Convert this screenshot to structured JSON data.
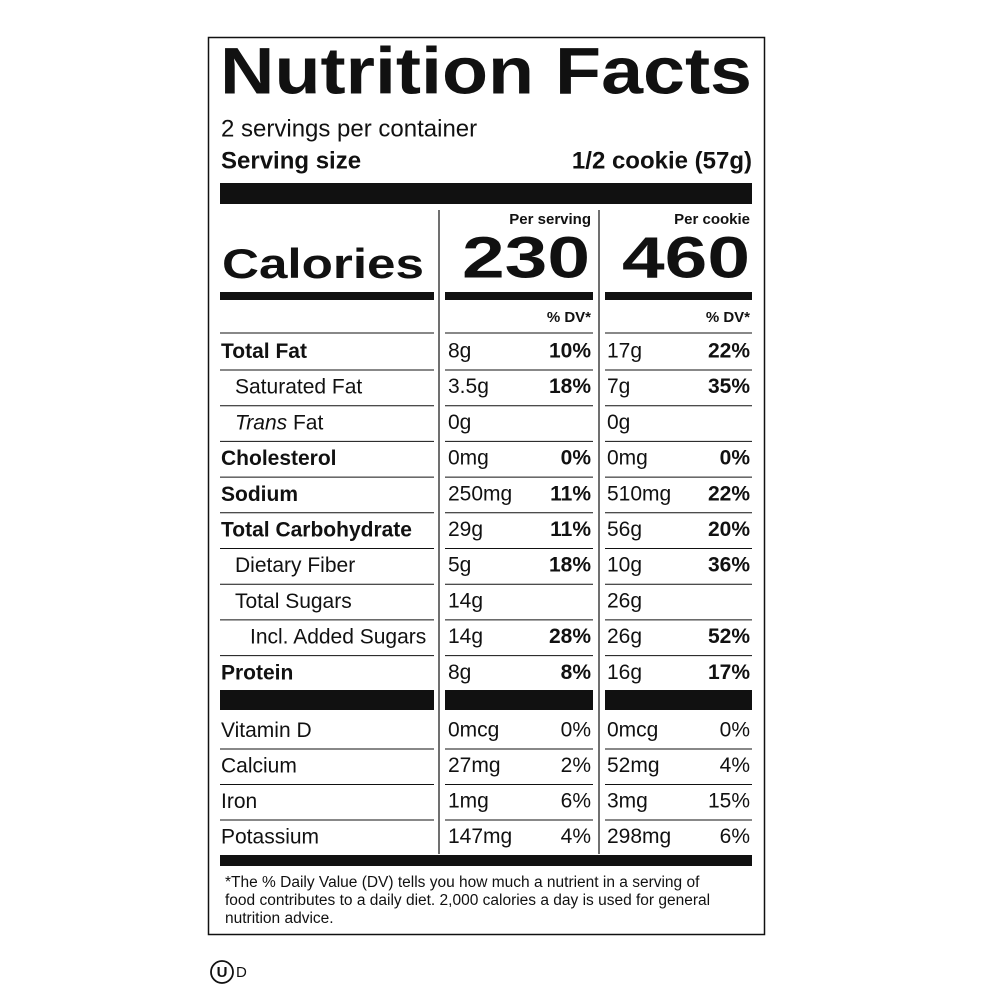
{
  "title": "Nutrition Facts",
  "servings": "2 servings per container",
  "serving_size_label": "Serving size",
  "serving_size": "1/2 cookie (57g)",
  "columns": [
    "Per serving",
    "Per cookie"
  ],
  "calories_label": "Calories",
  "calories": [
    "230",
    "460"
  ],
  "dv_headers": [
    "% DV*",
    "% DV*"
  ],
  "nutrients": [
    {
      "name": "Total Fat",
      "bold": true,
      "indent": 0,
      "per_serving": {
        "amount": "8g",
        "dv": "10%"
      },
      "per_cookie": {
        "amount": "17g",
        "dv": "22%"
      }
    },
    {
      "name": "Saturated Fat",
      "bold": false,
      "indent": 1,
      "per_serving": {
        "amount": "3.5g",
        "dv": "18%"
      },
      "per_cookie": {
        "amount": "7g",
        "dv": "35%"
      }
    },
    {
      "name_italic": "Trans",
      "name": " Fat",
      "bold": false,
      "indent": 1,
      "per_serving": {
        "amount": "0g"
      },
      "per_cookie": {
        "amount": "0g"
      }
    },
    {
      "name": "Cholesterol",
      "bold": true,
      "indent": 0,
      "per_serving": {
        "amount": "0mg",
        "dv": "0%"
      },
      "per_cookie": {
        "amount": "0mg",
        "dv": "0%"
      }
    },
    {
      "name": "Sodium",
      "bold": true,
      "indent": 0,
      "per_serving": {
        "amount": "250mg",
        "dv": "11%"
      },
      "per_cookie": {
        "amount": "510mg",
        "dv": "22%"
      }
    },
    {
      "name": "Total Carbohydrate",
      "bold": true,
      "indent": 0,
      "per_serving": {
        "amount": "29g",
        "dv": "11%"
      },
      "per_cookie": {
        "amount": "56g",
        "dv": "20%"
      }
    },
    {
      "name": "Dietary Fiber",
      "bold": false,
      "indent": 1,
      "per_serving": {
        "amount": "5g",
        "dv": "18%"
      },
      "per_cookie": {
        "amount": "10g",
        "dv": "36%"
      }
    },
    {
      "name": "Total Sugars",
      "bold": false,
      "indent": 1,
      "per_serving": {
        "amount": "14g"
      },
      "per_cookie": {
        "amount": "26g"
      }
    },
    {
      "name": "Incl. Added Sugars",
      "bold": false,
      "indent": 2,
      "per_serving": {
        "amount": "14g",
        "dv": "28%"
      },
      "per_cookie": {
        "amount": "26g",
        "dv": "52%"
      }
    },
    {
      "name": "Protein",
      "bold": true,
      "indent": 0,
      "per_serving": {
        "amount": "8g",
        "dv": "8%"
      },
      "per_cookie": {
        "amount": "16g",
        "dv": "17%"
      }
    }
  ],
  "vitamins": [
    {
      "name": "Vitamin D",
      "per_serving": {
        "amount": "0mcg",
        "dv": "0%"
      },
      "per_cookie": {
        "amount": "0mcg",
        "dv": "0%"
      }
    },
    {
      "name": "Calcium",
      "per_serving": {
        "amount": "27mg",
        "dv": "2%"
      },
      "per_cookie": {
        "amount": "52mg",
        "dv": "4%"
      }
    },
    {
      "name": "Iron",
      "per_serving": {
        "amount": "1mg",
        "dv": "6%"
      },
      "per_cookie": {
        "amount": "3mg",
        "dv": "15%"
      }
    },
    {
      "name": "Potassium",
      "per_serving": {
        "amount": "147mg",
        "dv": "4%"
      },
      "per_cookie": {
        "amount": "298mg",
        "dv": "6%"
      }
    }
  ],
  "footnote": [
    "*The % Daily Value (DV) tells you how much a nutrient in a serving of",
    "food contributes to a daily diet. 2,000 calories a day is used for general",
    "nutrition advice."
  ],
  "kosher_mark": "U",
  "kosher_suffix": "D"
}
